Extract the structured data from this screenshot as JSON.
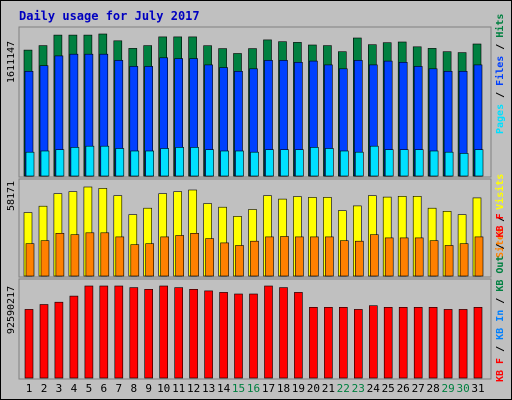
{
  "title": "Daily usage for July 2017",
  "colors": {
    "hits": "#008040",
    "files": "#0040ff",
    "pages": "#00e0ff",
    "visits": "#ffff00",
    "sites": "#ff8000",
    "kbin": "#ff0000",
    "kbout": "#0080ff",
    "kbf": "#ff0000",
    "bg": "#c0c0c0",
    "day_weekday": "#000000",
    "day_weekend": "#008040"
  },
  "chart_data": [
    {
      "type": "bar",
      "categories": [
        "1",
        "2",
        "3",
        "4",
        "5",
        "6",
        "7",
        "8",
        "9",
        "10",
        "11",
        "12",
        "13",
        "14",
        "15",
        "16",
        "17",
        "18",
        "19",
        "20",
        "21",
        "22",
        "23",
        "24",
        "25",
        "26",
        "27",
        "28",
        "29",
        "30",
        "31"
      ],
      "weekend": [
        false,
        false,
        false,
        false,
        false,
        false,
        false,
        false,
        false,
        false,
        false,
        false,
        false,
        false,
        true,
        true,
        false,
        false,
        false,
        false,
        false,
        true,
        true,
        false,
        false,
        false,
        false,
        false,
        true,
        true,
        false
      ],
      "ymax_label": "1611147",
      "ylim": [
        0,
        1611147
      ],
      "legend": [
        "Pages",
        "Files",
        "Hits"
      ],
      "series": [
        {
          "name": "Hits",
          "values": [
            1428000,
            1480000,
            1599000,
            1599000,
            1599000,
            1611147,
            1534000,
            1448000,
            1480000,
            1578000,
            1578000,
            1578000,
            1478000,
            1446000,
            1390000,
            1446000,
            1544000,
            1524000,
            1516000,
            1486000,
            1480000,
            1410000,
            1566000,
            1490000,
            1512000,
            1520000,
            1466000,
            1448000,
            1410000,
            1400000,
            1498000
          ]
        },
        {
          "name": "Files",
          "values": [
            1188000,
            1251000,
            1363000,
            1382000,
            1382000,
            1382000,
            1312000,
            1243000,
            1243000,
            1341000,
            1332000,
            1332000,
            1260000,
            1230000,
            1188000,
            1216000,
            1312000,
            1312000,
            1290000,
            1304000,
            1260000,
            1216000,
            1312000,
            1260000,
            1304000,
            1290000,
            1243000,
            1216000,
            1188000,
            1188000,
            1260000
          ]
        },
        {
          "name": "Pages",
          "values": [
            270000,
            284000,
            298000,
            324000,
            338000,
            338000,
            312000,
            284000,
            284000,
            312000,
            324000,
            324000,
            298000,
            284000,
            284000,
            270000,
            298000,
            298000,
            298000,
            324000,
            312000,
            284000,
            270000,
            338000,
            298000,
            298000,
            298000,
            284000,
            270000,
            256000,
            298000
          ]
        }
      ]
    },
    {
      "type": "bar",
      "categories": [
        "1",
        "2",
        "3",
        "4",
        "5",
        "6",
        "7",
        "8",
        "9",
        "10",
        "11",
        "12",
        "13",
        "14",
        "15",
        "16",
        "17",
        "18",
        "19",
        "20",
        "21",
        "22",
        "23",
        "24",
        "25",
        "26",
        "27",
        "28",
        "29",
        "30",
        "31"
      ],
      "ymax_label": "58171",
      "ylim": [
        0,
        58171
      ],
      "legend": [
        "Sites",
        "Visits"
      ],
      "series": [
        {
          "name": "Visits",
          "values": [
            41000,
            45100,
            53200,
            54500,
            57500,
            56600,
            51900,
            39600,
            43800,
            53200,
            54500,
            55600,
            46800,
            44500,
            38500,
            43000,
            51900,
            49700,
            51300,
            50800,
            50800,
            42200,
            45300,
            51900,
            51000,
            51500,
            51500,
            43800,
            41800,
            39600,
            50500
          ]
        },
        {
          "name": "Sites",
          "values": [
            20900,
            22800,
            27600,
            26700,
            27900,
            27900,
            25300,
            20200,
            20900,
            25300,
            26200,
            27600,
            24200,
            21400,
            19700,
            22500,
            25300,
            25500,
            25300,
            25300,
            25300,
            22800,
            22500,
            26700,
            24600,
            24600,
            24600,
            22800,
            19700,
            20900,
            25300
          ]
        }
      ]
    },
    {
      "type": "bar",
      "categories": [
        "1",
        "2",
        "3",
        "4",
        "5",
        "6",
        "7",
        "8",
        "9",
        "10",
        "11",
        "12",
        "13",
        "14",
        "15",
        "16",
        "17",
        "18",
        "19",
        "20",
        "21",
        "22",
        "23",
        "24",
        "25",
        "26",
        "27",
        "28",
        "29",
        "30",
        "31"
      ],
      "ymax_label": "92590217",
      "ylim": [
        0,
        92590217
      ],
      "legend": [
        "KB F",
        "KB In",
        "KB Out",
        "KB F"
      ],
      "series": [
        {
          "name": "KB F",
          "values": [
            69000000,
            74000000,
            76300000,
            82400000,
            92590217,
            92590217,
            92590217,
            91000000,
            89300000,
            92590217,
            91000000,
            89300000,
            87700000,
            86100000,
            84500000,
            84500000,
            92590217,
            91000000,
            86100000,
            71200000,
            71200000,
            71200000,
            69000000,
            72800000,
            71200000,
            71200000,
            71200000,
            71200000,
            69000000,
            69000000,
            71200000
          ]
        }
      ]
    }
  ],
  "legend_right": {
    "top": {
      "pages": "Pages",
      "sep1": " / ",
      "files": "Files",
      "sep2": " / ",
      "hits": "Hits"
    },
    "mid": {
      "sites": "Sites",
      "sep1": " / ",
      "visits": "Visits"
    },
    "bot": {
      "kbf": "KB F",
      "sep1": " / ",
      "kbin": "KB In",
      "sep2": " / ",
      "kbout": "KB Out",
      "sep3": " / ",
      "kbf2": "KB F"
    }
  }
}
